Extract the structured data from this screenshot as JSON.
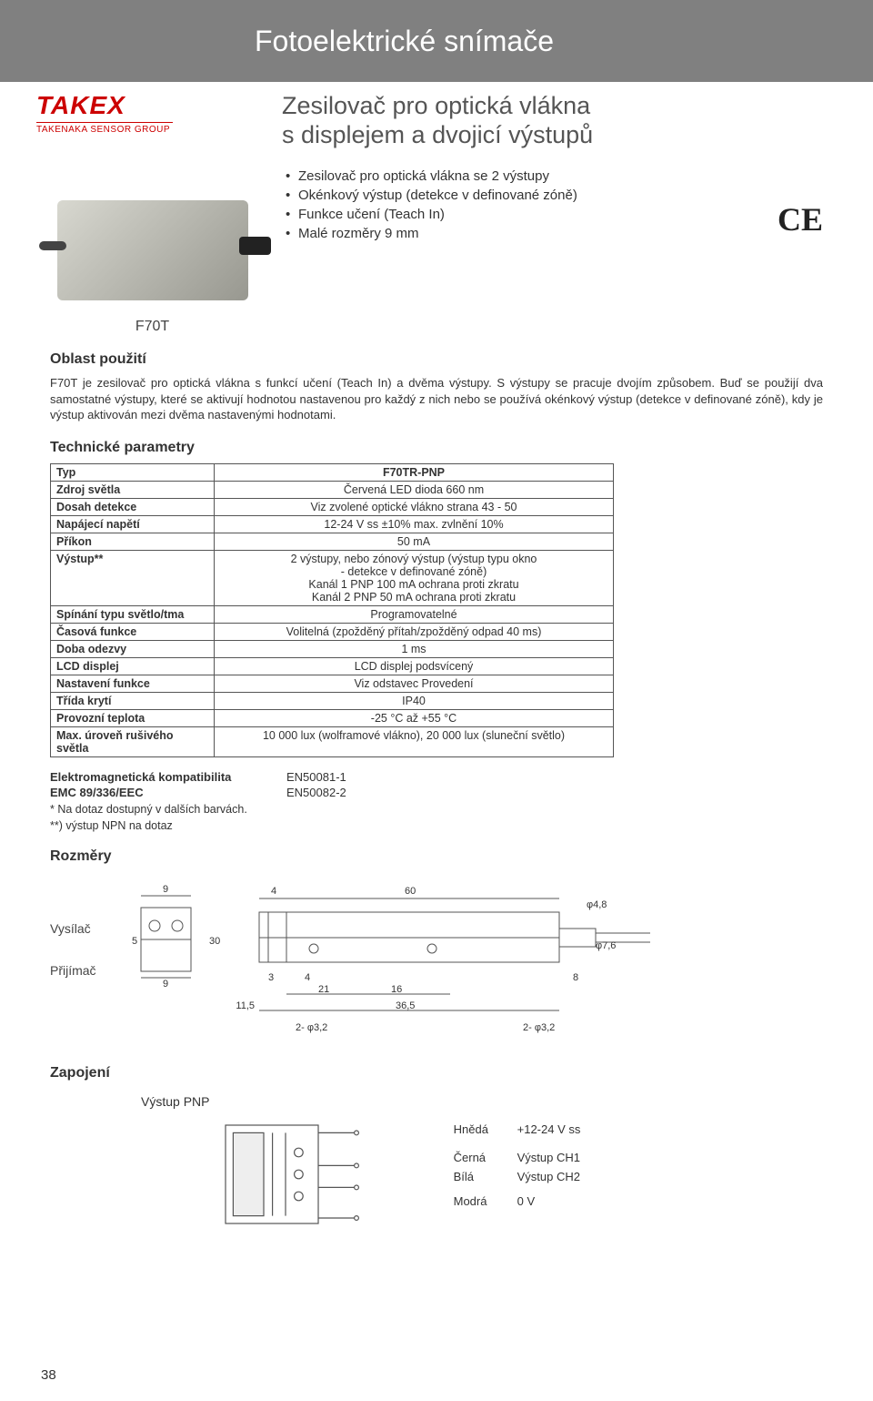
{
  "page": {
    "header_title": "Fotoelektrické snímače",
    "page_number": "38"
  },
  "logo": {
    "brand": "TAKEX",
    "sub": "TAKENAKA SENSOR GROUP"
  },
  "hero": {
    "model": "F70T",
    "title_line1": "Zesilovač pro optická vlákna",
    "title_line2": "s displejem a dvojicí výstupů",
    "bullets": [
      "Zesilovač pro optická vlákna se 2 výstupy",
      "Okénkový výstup (detekce v definované zóně)",
      "Funkce učení (Teach In)",
      "Malé rozměry 9 mm"
    ],
    "ce": "CE"
  },
  "application": {
    "title": "Oblast použití",
    "text": "F70T je zesilovač pro optická vlákna s funkcí učení (Teach In) a dvěma výstupy. S výstupy se pracuje dvojím způsobem. Buď se použijí dva samostatné výstupy, které se aktivují hodnotou nastavenou pro každý z nich nebo se používá okénkový výstup (detekce v definované zóně), kdy je výstup aktivován mezi dvěma nastavenými hodnotami."
  },
  "specs": {
    "title": "Technické parametry",
    "header_col": "Typ",
    "header_val": "F70TR-PNP",
    "rows": [
      {
        "label": "Zdroj světla",
        "value": "Červená LED dioda 660 nm"
      },
      {
        "label": "Dosah detekce",
        "value": "Viz zvolené optické vlákno strana 43 - 50"
      },
      {
        "label": "Napájecí napětí",
        "value": "12-24 V ss ±10% max. zvlnění 10%"
      },
      {
        "label": "Příkon",
        "value": "50 mA"
      },
      {
        "label": "Výstup**",
        "value": "2 výstupy, nebo zónový výstup (výstup typu okno\n- detekce v definované zóně)\nKanál 1 PNP 100 mA ochrana proti zkratu\nKanál 2 PNP 50 mA ochrana proti zkratu"
      },
      {
        "label": "Spínání typu světlo/tma",
        "value": "Programovatelné"
      },
      {
        "label": "Časová funkce",
        "value": "Volitelná (zpožděný přítah/zpožděný odpad 40 ms)"
      },
      {
        "label": "Doba odezvy",
        "value": "1 ms"
      },
      {
        "label": "LCD displej",
        "value": "LCD displej podsvícený"
      },
      {
        "label": "Nastavení funkce",
        "value": "Viz odstavec Provedení"
      },
      {
        "label": "Třída krytí",
        "value": "IP40"
      },
      {
        "label": "Provozní teplota",
        "value": "-25 °C až +55 °C"
      },
      {
        "label": "Max. úroveň rušivého světla",
        "value": "10 000 lux (wolframové vlákno), 20 000 lux (sluneční světlo)"
      }
    ]
  },
  "emc": {
    "label1": "Elektromagnetická kompatibilita",
    "val1": "EN50081-1",
    "label2": "EMC 89/336/EEC",
    "val2": "EN50082-2",
    "note1": "* Na dotaz dostupný v dalších barvách.",
    "note2": "**) výstup NPN na dotaz"
  },
  "dimensions": {
    "title": "Rozměry",
    "label_tx": "Vysílač",
    "label_rx": "Přijímač",
    "values": {
      "w_left_top": "9",
      "w_left_mid": "5",
      "w_left_btm": "9",
      "gap1": "4",
      "body": "60",
      "phi_small": "φ4,8",
      "gap2": "3",
      "gap3": "4",
      "phi_mid": "φ7,6",
      "under1": "21",
      "under2": "16",
      "under_total": "36,5",
      "left_total": "11,5",
      "left_pre": "30",
      "right_h": "8",
      "hole_left": "2- φ3,2",
      "hole_right": "2- φ3,2",
      "line_color": "#555555",
      "text_color": "#333333"
    }
  },
  "wiring": {
    "title": "Zapojení",
    "subtitle": "Výstup PNP",
    "rows": [
      {
        "color": "Hnědá",
        "desc": "+12-24 V ss"
      },
      {
        "color": "Černá",
        "desc": "Výstup CH1"
      },
      {
        "color": "Bílá",
        "desc": "Výstup CH2"
      },
      {
        "color": "Modrá",
        "desc": "0 V"
      }
    ],
    "svg_colors": {
      "stroke": "#555555",
      "fill": "#ffffff"
    }
  }
}
